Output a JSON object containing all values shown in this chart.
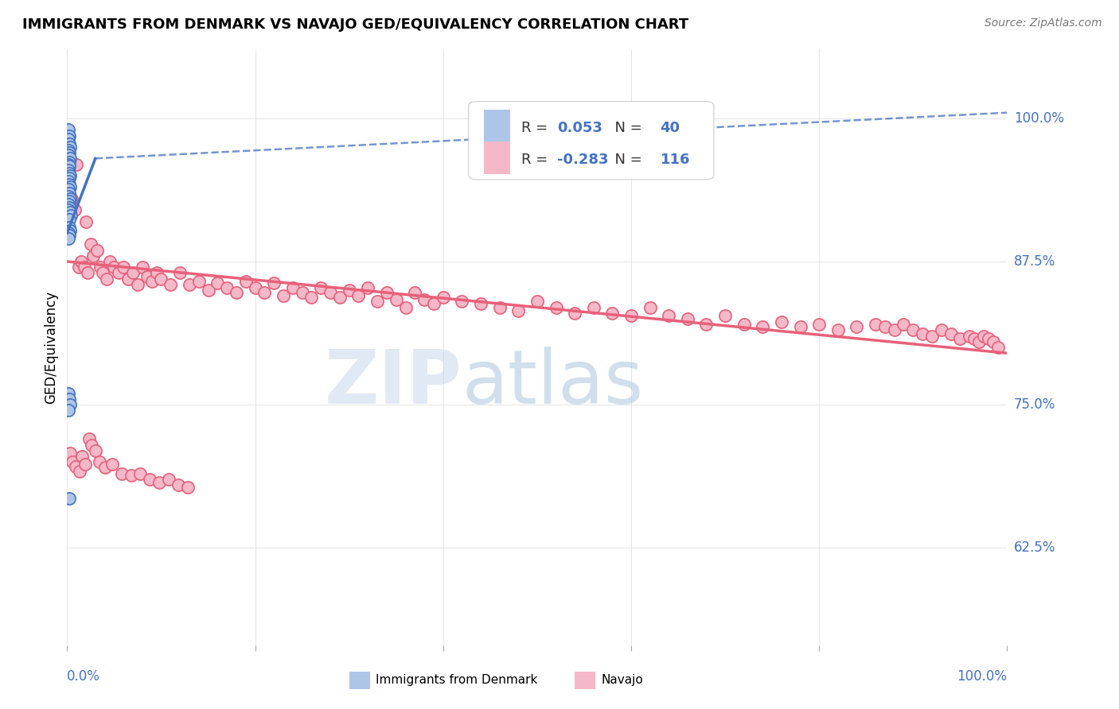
{
  "title": "IMMIGRANTS FROM DENMARK VS NAVAJO GED/EQUIVALENCY CORRELATION CHART",
  "source": "Source: ZipAtlas.com",
  "ylabel": "GED/Equivalency",
  "yticks_labels": [
    "100.0%",
    "87.5%",
    "75.0%",
    "62.5%"
  ],
  "yticks_vals": [
    1.0,
    0.875,
    0.75,
    0.625
  ],
  "xlim": [
    0.0,
    1.0
  ],
  "ylim": [
    0.54,
    1.06
  ],
  "blue_color": "#adc6e8",
  "blue_line_color": "#4472c4",
  "pink_color": "#f5b8c8",
  "pink_line_color": "#e8607a",
  "legend_r1": "0.053",
  "legend_n1": "40",
  "legend_r2": "-0.283",
  "legend_n2": "116",
  "blue_trend": [
    0.0,
    0.9,
    0.03,
    0.965
  ],
  "blue_dashed": [
    0.03,
    0.965,
    1.0,
    1.005
  ],
  "pink_trend": [
    0.0,
    0.875,
    1.0,
    0.795
  ],
  "blue_x": [
    0.001,
    0.002,
    0.001,
    0.002,
    0.003,
    0.001,
    0.002,
    0.001,
    0.003,
    0.002,
    0.001,
    0.002,
    0.001,
    0.002,
    0.003,
    0.002,
    0.001,
    0.002,
    0.003,
    0.001,
    0.002,
    0.001,
    0.003,
    0.002,
    0.001,
    0.002,
    0.001,
    0.003,
    0.004,
    0.002,
    0.001,
    0.002,
    0.003,
    0.001,
    0.002,
    0.003,
    0.001,
    0.002,
    0.001,
    0.002
  ],
  "blue_y": [
    0.99,
    0.985,
    0.982,
    0.978,
    0.975,
    0.972,
    0.97,
    0.968,
    0.965,
    0.962,
    0.96,
    0.958,
    0.955,
    0.952,
    0.95,
    0.948,
    0.945,
    0.942,
    0.94,
    0.938,
    0.935,
    0.932,
    0.93,
    0.928,
    0.925,
    0.922,
    0.92,
    0.918,
    0.915,
    0.912,
    0.76,
    0.755,
    0.75,
    0.745,
    0.905,
    0.902,
    0.9,
    0.898,
    0.895,
    0.668
  ],
  "pink_x": [
    0.003,
    0.005,
    0.008,
    0.01,
    0.012,
    0.015,
    0.018,
    0.02,
    0.022,
    0.025,
    0.028,
    0.032,
    0.035,
    0.038,
    0.042,
    0.045,
    0.05,
    0.055,
    0.06,
    0.065,
    0.07,
    0.075,
    0.08,
    0.085,
    0.09,
    0.095,
    0.1,
    0.11,
    0.12,
    0.13,
    0.14,
    0.15,
    0.16,
    0.17,
    0.18,
    0.19,
    0.2,
    0.21,
    0.22,
    0.23,
    0.24,
    0.25,
    0.26,
    0.27,
    0.28,
    0.29,
    0.3,
    0.31,
    0.32,
    0.33,
    0.34,
    0.35,
    0.36,
    0.37,
    0.38,
    0.39,
    0.4,
    0.42,
    0.44,
    0.46,
    0.48,
    0.5,
    0.52,
    0.54,
    0.56,
    0.58,
    0.6,
    0.62,
    0.64,
    0.66,
    0.68,
    0.7,
    0.72,
    0.74,
    0.76,
    0.78,
    0.8,
    0.82,
    0.84,
    0.86,
    0.87,
    0.88,
    0.89,
    0.9,
    0.91,
    0.92,
    0.93,
    0.94,
    0.95,
    0.96,
    0.965,
    0.97,
    0.975,
    0.98,
    0.985,
    0.99,
    0.003,
    0.006,
    0.009,
    0.013,
    0.016,
    0.019,
    0.023,
    0.026,
    0.03,
    0.034,
    0.04,
    0.048,
    0.058,
    0.068,
    0.078,
    0.088,
    0.098,
    0.108,
    0.118,
    0.128
  ],
  "pink_y": [
    0.96,
    0.93,
    0.92,
    0.96,
    0.87,
    0.875,
    0.87,
    0.91,
    0.865,
    0.89,
    0.88,
    0.885,
    0.87,
    0.865,
    0.86,
    0.875,
    0.87,
    0.865,
    0.87,
    0.86,
    0.865,
    0.855,
    0.87,
    0.862,
    0.858,
    0.865,
    0.86,
    0.855,
    0.865,
    0.855,
    0.858,
    0.85,
    0.856,
    0.852,
    0.848,
    0.858,
    0.852,
    0.848,
    0.856,
    0.845,
    0.852,
    0.848,
    0.844,
    0.852,
    0.848,
    0.844,
    0.85,
    0.845,
    0.852,
    0.84,
    0.848,
    0.842,
    0.835,
    0.848,
    0.842,
    0.838,
    0.844,
    0.84,
    0.838,
    0.835,
    0.832,
    0.84,
    0.835,
    0.83,
    0.835,
    0.83,
    0.828,
    0.835,
    0.828,
    0.825,
    0.82,
    0.828,
    0.82,
    0.818,
    0.822,
    0.818,
    0.82,
    0.815,
    0.818,
    0.82,
    0.818,
    0.815,
    0.82,
    0.815,
    0.812,
    0.81,
    0.815,
    0.812,
    0.808,
    0.81,
    0.808,
    0.805,
    0.81,
    0.808,
    0.805,
    0.8,
    0.708,
    0.7,
    0.696,
    0.692,
    0.705,
    0.698,
    0.72,
    0.715,
    0.71,
    0.7,
    0.695,
    0.698,
    0.69,
    0.688,
    0.69,
    0.685,
    0.682,
    0.685,
    0.68,
    0.678
  ]
}
